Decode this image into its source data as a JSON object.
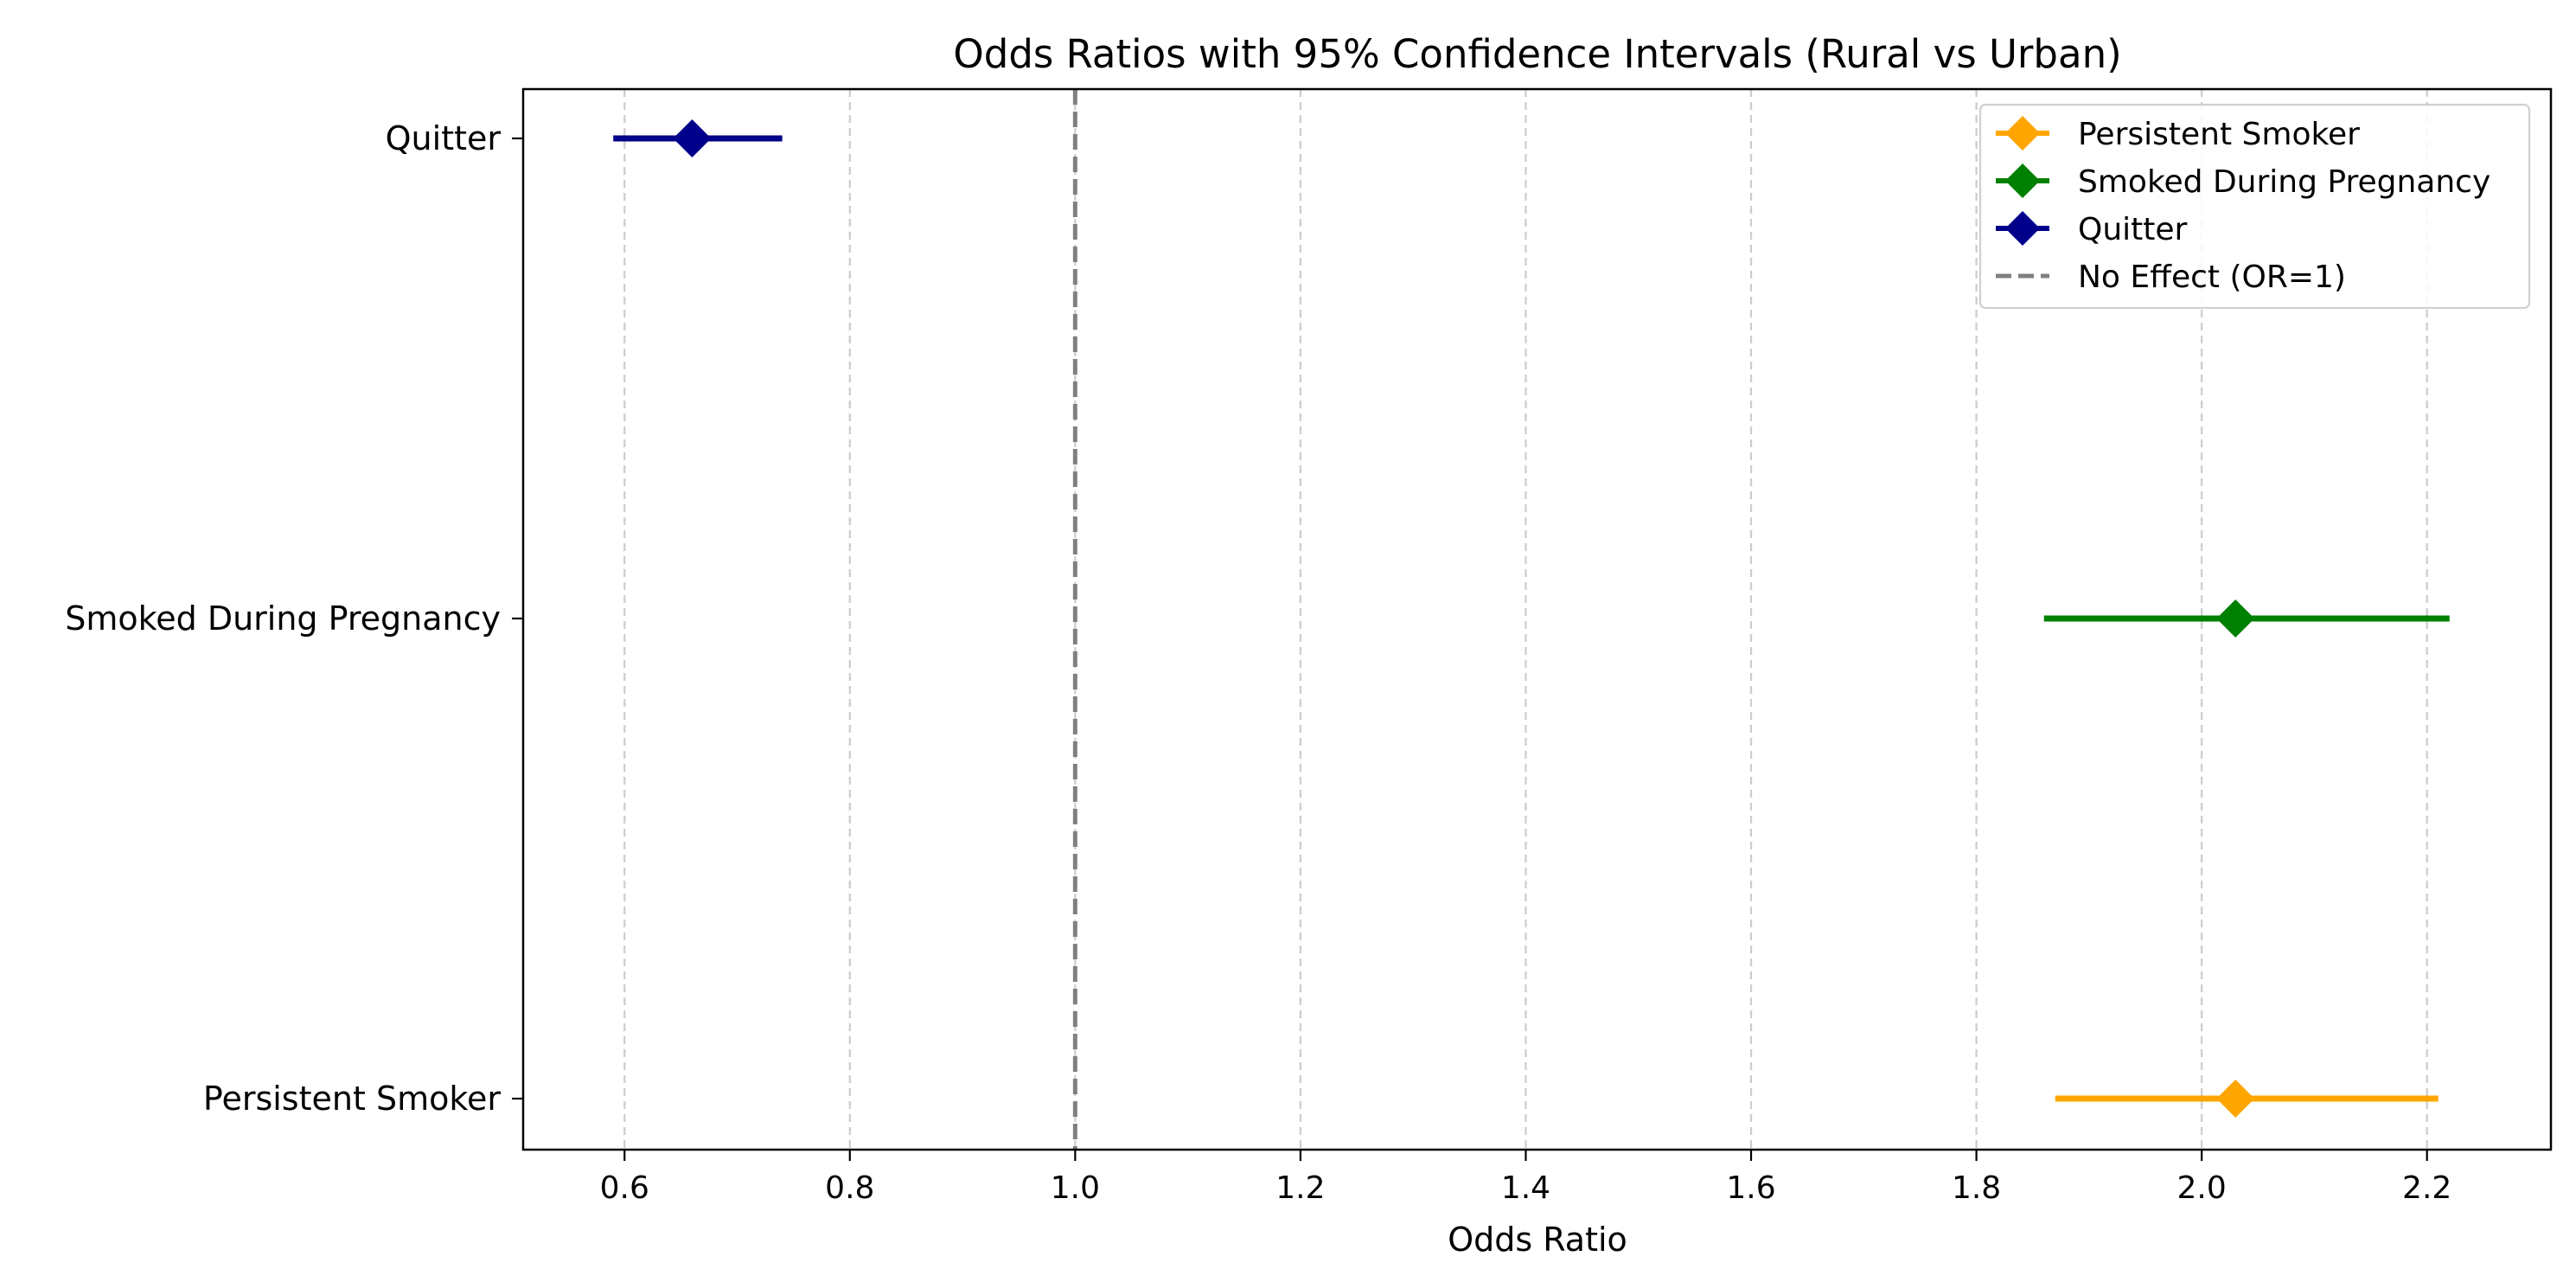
{
  "chart_data": {
    "type": "forest",
    "title": "Odds Ratios with 95% Confidence Intervals (Rural vs Urban)",
    "xlabel": "Odds Ratio",
    "ylabel": "",
    "xlim": [
      0.51,
      2.31
    ],
    "xticks": [
      0.6,
      0.8,
      1.0,
      1.2,
      1.4,
      1.6,
      1.8,
      2.0,
      2.2
    ],
    "xtick_labels": [
      "0.6",
      "0.8",
      "1.0",
      "1.2",
      "1.4",
      "1.6",
      "1.8",
      "2.0",
      "2.2"
    ],
    "grid": "x, dashed",
    "reference_line": {
      "value": 1.0,
      "label": "No Effect (OR=1)",
      "color": "#808080"
    },
    "categories": [
      "Persistent Smoker",
      "Smoked During Pregnancy",
      "Quitter"
    ],
    "series": [
      {
        "name": "Persistent Smoker",
        "category": "Persistent Smoker",
        "or": 2.03,
        "ci_low": 1.87,
        "ci_high": 2.21,
        "color": "#FFA500"
      },
      {
        "name": "Smoked During Pregnancy",
        "category": "Smoked During Pregnancy",
        "or": 2.03,
        "ci_low": 1.86,
        "ci_high": 2.22,
        "color": "#008000"
      },
      {
        "name": "Quitter",
        "category": "Quitter",
        "or": 0.66,
        "ci_low": 0.59,
        "ci_high": 0.74,
        "color": "#00008B"
      }
    ],
    "legend": {
      "position": "top-right",
      "entries": [
        "Persistent Smoker",
        "Smoked During Pregnancy",
        "Quitter",
        "No Effect (OR=1)"
      ]
    }
  }
}
